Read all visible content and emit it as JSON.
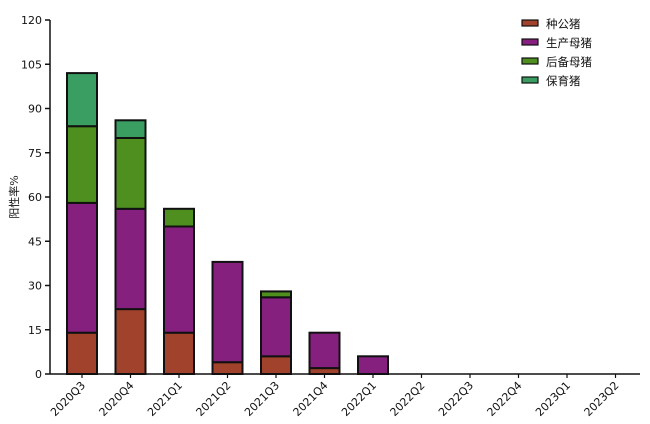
{
  "chart_data": {
    "type": "bar",
    "stacked": true,
    "ylabel": "阳性率%",
    "xlabel": "",
    "ylim": [
      0,
      120
    ],
    "yticks": [
      0,
      15,
      30,
      45,
      60,
      75,
      90,
      105,
      120
    ],
    "grid": false,
    "legend_position": "top-right",
    "categories": [
      "2020Q3",
      "2020Q4",
      "2021Q1",
      "2021Q2",
      "2021Q3",
      "2021Q4",
      "2022Q1",
      "2022Q2",
      "2022Q3",
      "2022Q4",
      "2023Q1",
      "2023Q2"
    ],
    "series": [
      {
        "name": "种公猪",
        "color": "#a0422c",
        "values": [
          14,
          22,
          14,
          4,
          6,
          2,
          0,
          0,
          0,
          0,
          0,
          0
        ]
      },
      {
        "name": "生产母猪",
        "color": "#86207f",
        "values": [
          44,
          34,
          36,
          34,
          20,
          12,
          6,
          0,
          0,
          0,
          0,
          0
        ]
      },
      {
        "name": "后备母猪",
        "color": "#4f8f1f",
        "values": [
          26,
          24,
          6,
          0,
          2,
          0,
          0,
          0,
          0,
          0,
          0,
          0
        ]
      },
      {
        "name": "保育猪",
        "color": "#3a9e63",
        "values": [
          18,
          6,
          0,
          0,
          0,
          0,
          0,
          0,
          0,
          0,
          0,
          0
        ]
      }
    ]
  }
}
